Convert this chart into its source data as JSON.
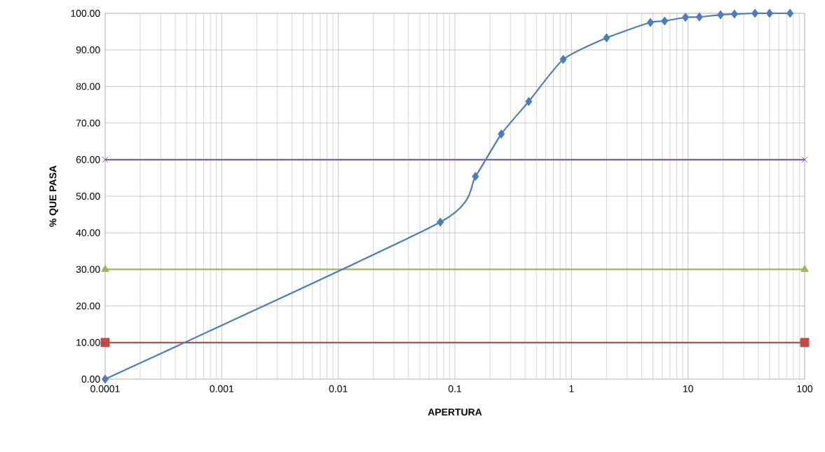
{
  "chart_data": {
    "type": "line",
    "xlabel": "APERTURA",
    "ylabel": "% QUE PASA",
    "log": "x",
    "grid": true,
    "xlim": [
      0.0001,
      100
    ],
    "ylim": [
      0,
      100
    ],
    "xticks": [
      {
        "value": 0.0001,
        "label": "0.0001"
      },
      {
        "value": 0.001,
        "label": "0.001"
      },
      {
        "value": 0.01,
        "label": "0.01"
      },
      {
        "value": 0.1,
        "label": "0.1"
      },
      {
        "value": 1,
        "label": "1"
      },
      {
        "value": 10,
        "label": "10"
      },
      {
        "value": 100,
        "label": "100"
      }
    ],
    "yticks": [
      {
        "value": 0,
        "label": "0.00"
      },
      {
        "value": 10,
        "label": "10.00"
      },
      {
        "value": 20,
        "label": "20.00"
      },
      {
        "value": 30,
        "label": "30.00"
      },
      {
        "value": 40,
        "label": "40.00"
      },
      {
        "value": 50,
        "label": "50.00"
      },
      {
        "value": 60,
        "label": "60.00"
      },
      {
        "value": 70,
        "label": "70.00"
      },
      {
        "value": 80,
        "label": "80.00"
      },
      {
        "value": 90,
        "label": "90.00"
      },
      {
        "value": 100,
        "label": "100.00"
      }
    ],
    "series": [
      {
        "color": "#4a7ebb",
        "marker": "diamond",
        "x": [
          0.0001,
          0.075,
          0.15,
          0.25,
          0.43,
          0.85,
          2.0,
          4.75,
          6.3,
          9.5,
          12.5,
          19,
          25,
          37.5,
          50,
          75
        ],
        "values": [
          0,
          42.9,
          55.4,
          67.0,
          75.9,
          87.4,
          93.3,
          97.5,
          97.9,
          98.9,
          99.0,
          99.6,
          99.8,
          100,
          100,
          100
        ]
      },
      {
        "color": "#be4b48",
        "marker": "square",
        "x": [
          0.0001,
          100
        ],
        "values": [
          10,
          10
        ]
      },
      {
        "color": "#98b954",
        "marker": "triangle",
        "x": [
          0.0001,
          100
        ],
        "values": [
          30,
          30
        ]
      },
      {
        "color": "#7d60a0",
        "marker": "cross",
        "x": [
          0.0001,
          100
        ],
        "values": [
          60,
          60
        ]
      }
    ]
  }
}
